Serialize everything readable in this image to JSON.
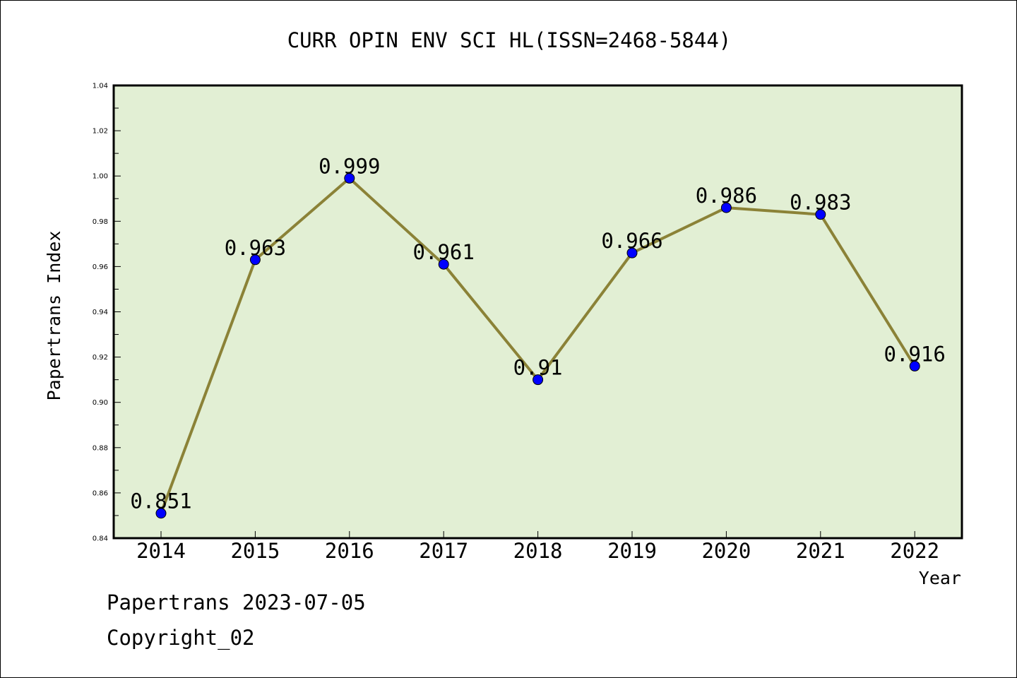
{
  "chart_data": {
    "type": "line",
    "title": "CURR OPIN ENV SCI HL(ISSN=2468-5844)",
    "xlabel": "Year",
    "ylabel": "Papertrans Index",
    "categories": [
      "2014",
      "2015",
      "2016",
      "2017",
      "2018",
      "2019",
      "2020",
      "2021",
      "2022"
    ],
    "values": [
      0.851,
      0.963,
      0.999,
      0.961,
      0.91,
      0.966,
      0.986,
      0.983,
      0.916
    ],
    "data_labels": [
      "0.851",
      "0.963",
      "0.999",
      "0.961",
      "0.91",
      "0.966",
      "0.986",
      "0.983",
      "0.916"
    ],
    "ylim": [
      0.84,
      1.04
    ],
    "yticks": [
      "0.84",
      "0.86",
      "0.88",
      "0.90",
      "0.92",
      "0.94",
      "0.96",
      "0.98",
      "1.00",
      "1.02",
      "1.04"
    ],
    "grid": false,
    "legend": "none",
    "colors": {
      "plot_background": "#e2efd4",
      "line": "#8b8237",
      "marker": "#0000ff"
    }
  },
  "footer": {
    "source": "Papertrans 2023-07-05",
    "copyright": "Copyright_02"
  }
}
